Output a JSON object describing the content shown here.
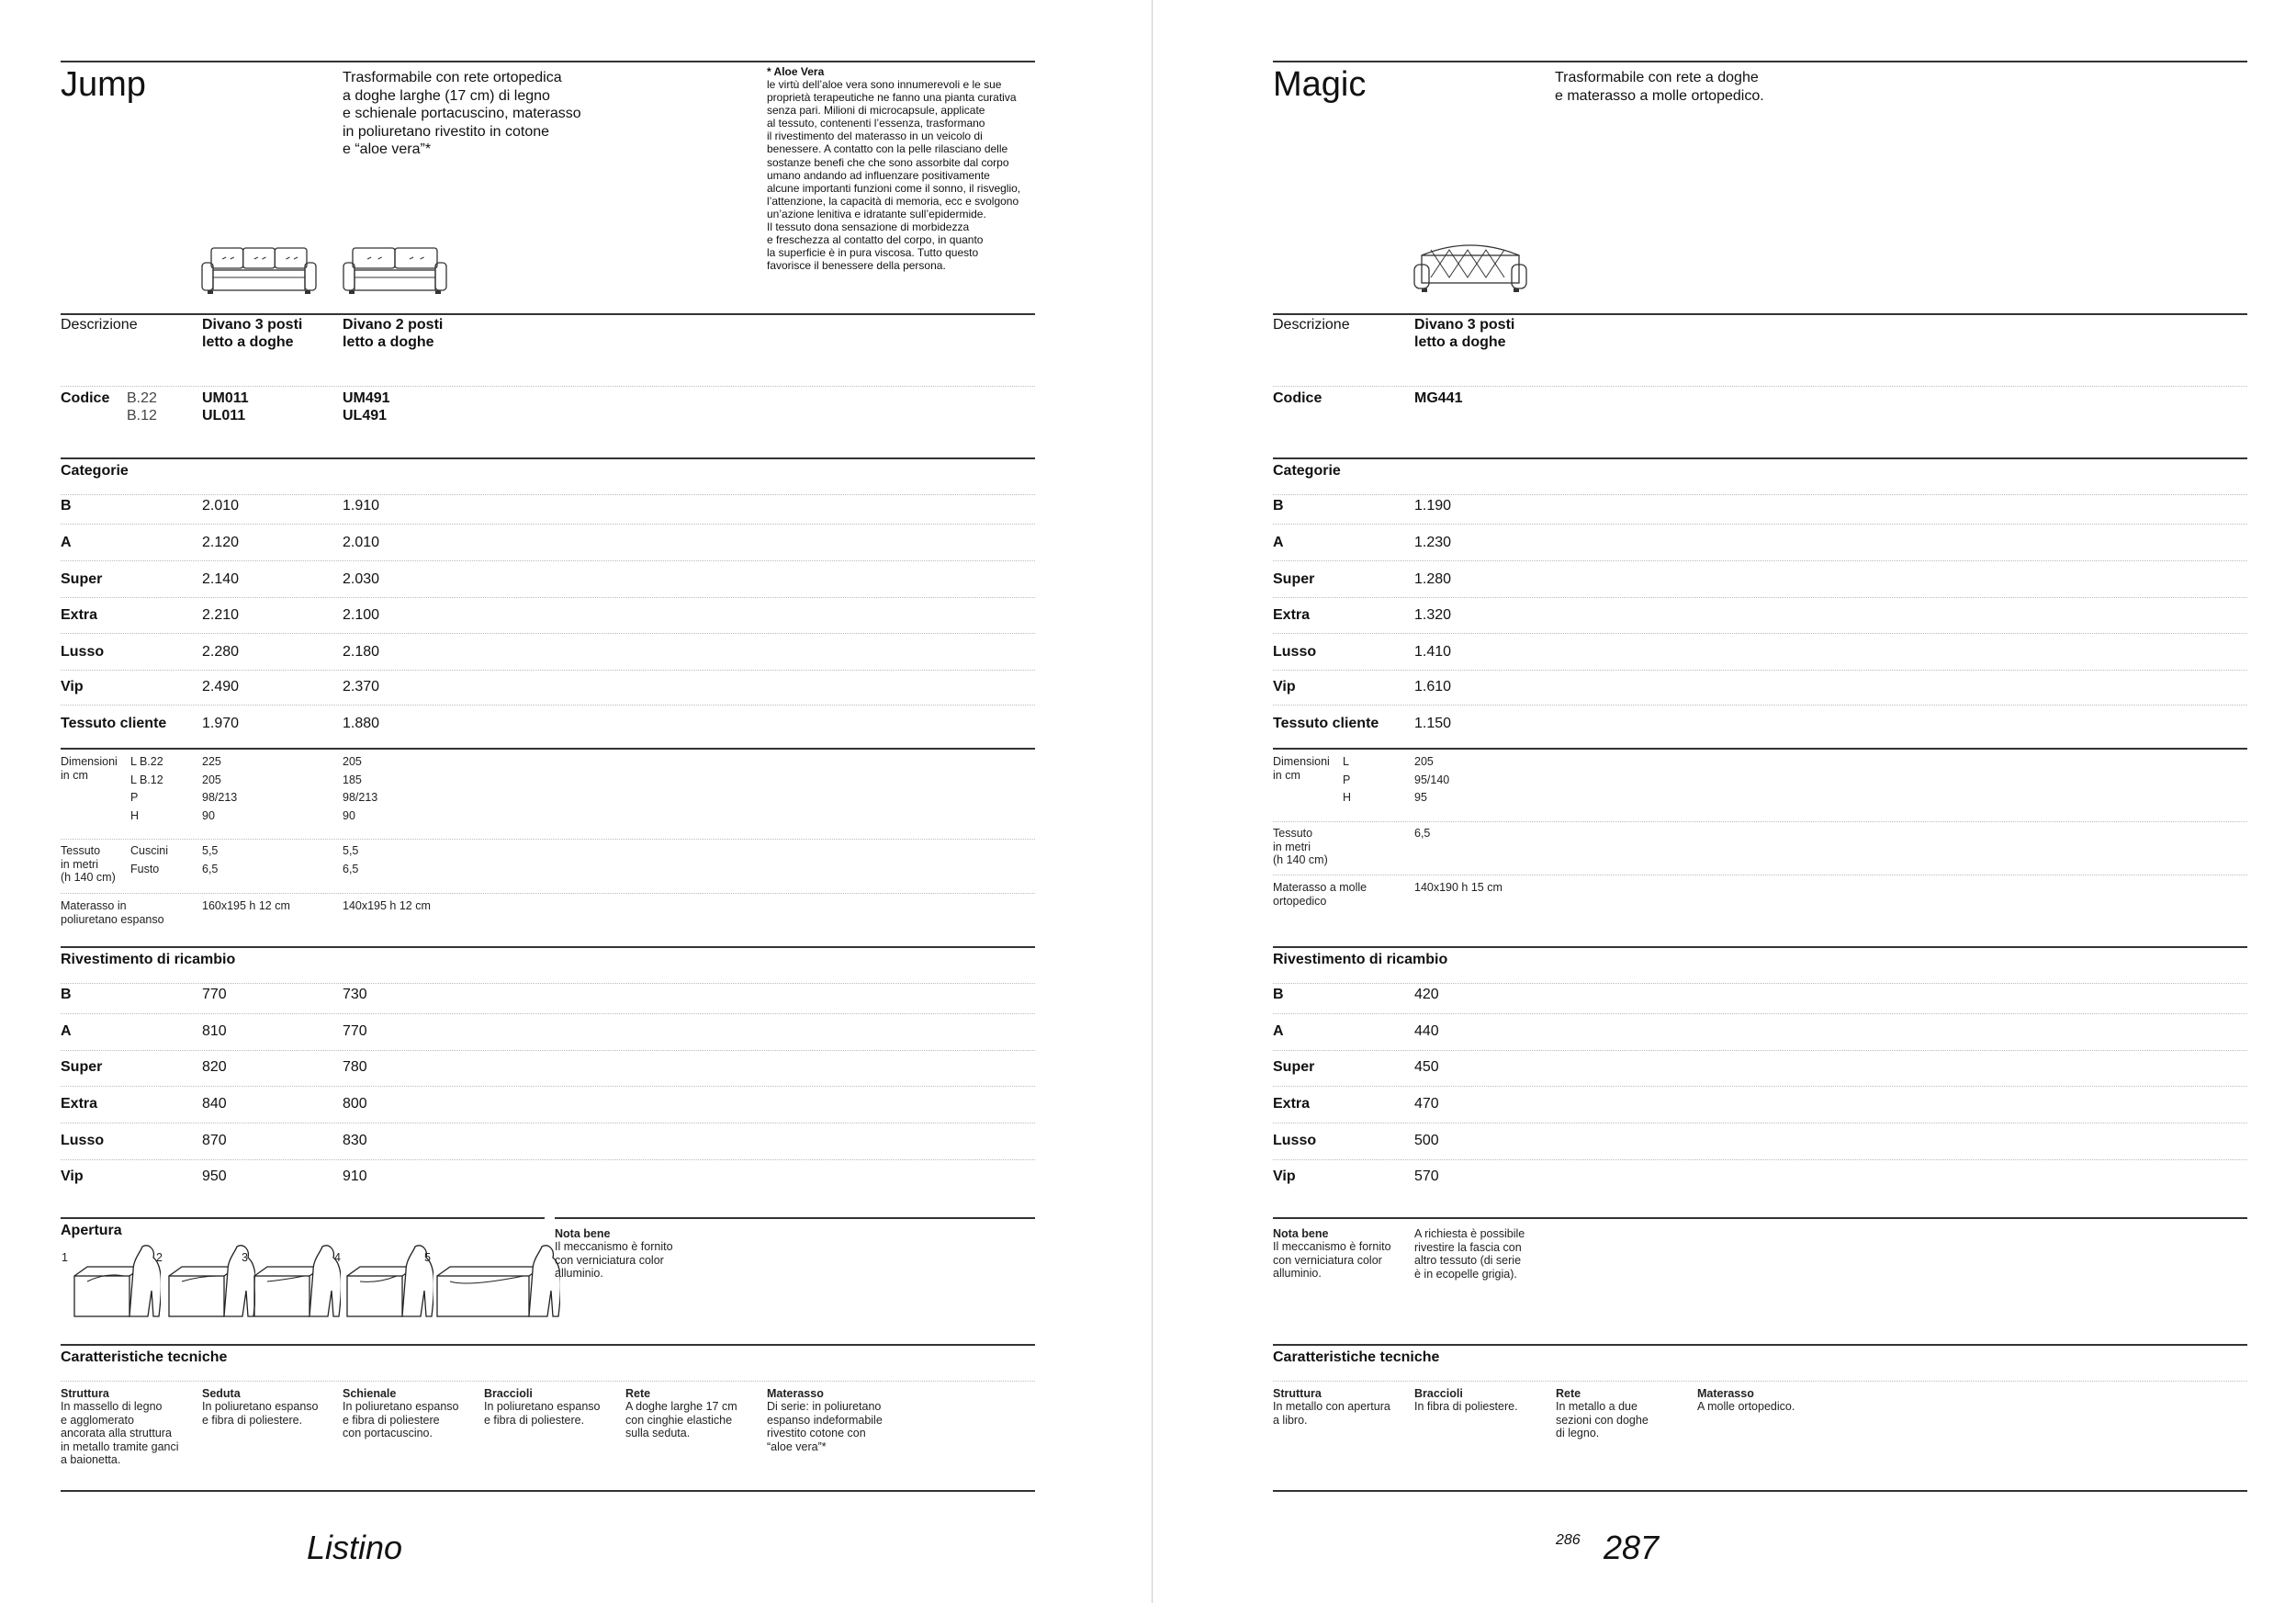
{
  "jump": {
    "title": "Jump",
    "description": "Trasformabile con rete ortopedica\na doghe larghe (17 cm) di legno\ne schienale portacuscino, materasso\nin poliuretano rivestito in cotone\ne “aloe vera”*",
    "aloe_title": "* Aloe Vera",
    "aloe_text": "le virtù dell’aloe vera sono innumerevoli e le sue\nproprietà terapeutiche ne fanno una pianta curativa\nsenza pari. Milioni di microcapsule, applicate\nal tessuto, contenenti l’essenza, trasformano\nil rivestimento del materasso in un veicolo di\nbenessere. A contatto con la pelle rilasciano delle\nsostanze benefi che che sono assorbite dal corpo\numano andando ad influenzare positivamente\nalcune importanti funzioni come il sonno, il risveglio,\nl’attenzione, la capacità di memoria, ecc e svolgono\nun’azione lenitiva e idratante sull’epidermide.\nIl tessuto dona sensazione di morbidezza\ne freschezza al contatto del corpo, in quanto\nla superficie è in pura viscosa. Tutto questo\nfavorisce il benessere della persona.",
    "descrizione_label": "Descrizione",
    "products": [
      "Divano 3 posti\nletto a doghe",
      "Divano 2 posti\nletto a doghe"
    ],
    "codice_label": "Codice",
    "codice_variants": "B.22\nB.12",
    "codes": [
      "UM011\nUL011",
      "UM491\nUL491"
    ],
    "categorie_label": "Categorie",
    "categories": [
      {
        "label": "B",
        "values": [
          "2.010",
          "1.910"
        ]
      },
      {
        "label": "A",
        "values": [
          "2.120",
          "2.010"
        ]
      },
      {
        "label": "Super",
        "values": [
          "2.140",
          "2.030"
        ]
      },
      {
        "label": "Extra",
        "values": [
          "2.210",
          "2.100"
        ]
      },
      {
        "label": "Lusso",
        "values": [
          "2.280",
          "2.180"
        ]
      },
      {
        "label": "Vip",
        "values": [
          "2.490",
          "2.370"
        ]
      },
      {
        "label": "Tessuto cliente",
        "values": [
          "1.970",
          "1.880"
        ]
      }
    ],
    "dimensioni_label": "Dimensioni\nin cm",
    "dimensioni": [
      {
        "label": "L  B.22",
        "values": [
          "225",
          "205"
        ]
      },
      {
        "label": "L  B.12",
        "values": [
          "205",
          "185"
        ]
      },
      {
        "label": "P",
        "values": [
          "98/213",
          "98/213"
        ]
      },
      {
        "label": "H",
        "values": [
          "90",
          "90"
        ]
      }
    ],
    "tessuto_label": "Tessuto\nin metri\n(h 140 cm)",
    "tessuto": [
      {
        "label": "Cuscini",
        "values": [
          "5,5",
          "5,5"
        ]
      },
      {
        "label": "Fusto",
        "values": [
          "6,5",
          "6,5"
        ]
      }
    ],
    "materasso_label": "Materasso in\npoliuretano espanso",
    "materasso_values": [
      "160x195  h 12 cm",
      "140x195  h 12 cm"
    ],
    "rivestimento_label": "Rivestimento di ricambio",
    "rivestimento": [
      {
        "label": "B",
        "values": [
          "770",
          "730"
        ]
      },
      {
        "label": "A",
        "values": [
          "810",
          "770"
        ]
      },
      {
        "label": "Super",
        "values": [
          "820",
          "780"
        ]
      },
      {
        "label": "Extra",
        "values": [
          "840",
          "800"
        ]
      },
      {
        "label": "Lusso",
        "values": [
          "870",
          "830"
        ]
      },
      {
        "label": "Vip",
        "values": [
          "950",
          "910"
        ]
      }
    ],
    "apertura_label": "Apertura",
    "apertura_steps": [
      "1",
      "2",
      "3",
      "4",
      "5"
    ],
    "nota_title": "Nota bene",
    "nota_text": "Il meccanismo è fornito\ncon verniciatura color\nalluminio.",
    "tech_label": "Caratteristiche tecniche",
    "tech": [
      {
        "title": "Struttura",
        "text": "In massello di legno\ne agglomerato\nancorata alla struttura\nin metallo tramite ganci\na baionetta."
      },
      {
        "title": "Seduta",
        "text": "In poliuretano espanso\ne fibra di poliestere."
      },
      {
        "title": "Schienale",
        "text": "In poliuretano espanso\ne fibra di poliestere\ncon portacuscino."
      },
      {
        "title": "Braccioli",
        "text": "In poliuretano espanso\ne fibra di poliestere."
      },
      {
        "title": "Rete",
        "text": "A doghe larghe 17 cm\ncon cinghie elastiche\nsulla seduta."
      },
      {
        "title": "Materasso",
        "text": "Di serie: in poliuretano\nespanso indeformabile\nrivestito cotone con\n“aloe vera”*"
      }
    ]
  },
  "magic": {
    "title": "Magic",
    "description": "Trasformabile con rete a doghe\ne materasso a molle ortopedico.",
    "descrizione_label": "Descrizione",
    "products": [
      "Divano 3 posti\nletto a doghe"
    ],
    "codice_label": "Codice",
    "codes": [
      "MG441"
    ],
    "categorie_label": "Categorie",
    "categories": [
      {
        "label": "B",
        "values": [
          "1.190"
        ]
      },
      {
        "label": "A",
        "values": [
          "1.230"
        ]
      },
      {
        "label": "Super",
        "values": [
          "1.280"
        ]
      },
      {
        "label": "Extra",
        "values": [
          "1.320"
        ]
      },
      {
        "label": "Lusso",
        "values": [
          "1.410"
        ]
      },
      {
        "label": "Vip",
        "values": [
          "1.610"
        ]
      },
      {
        "label": "Tessuto cliente",
        "values": [
          "1.150"
        ]
      }
    ],
    "dimensioni_label": "Dimensioni\nin cm",
    "dimensioni": [
      {
        "label": "L",
        "values": [
          "205"
        ]
      },
      {
        "label": "P",
        "values": [
          "95/140"
        ]
      },
      {
        "label": "H",
        "values": [
          "95"
        ]
      }
    ],
    "tessuto_label": "Tessuto\nin metri\n(h 140 cm)",
    "tessuto_value": "6,5",
    "materasso_label": "Materasso a molle\nortopedico",
    "materasso_value": "140x190  h 15 cm",
    "rivestimento_label": "Rivestimento di ricambio",
    "rivestimento": [
      {
        "label": "B",
        "values": [
          "420"
        ]
      },
      {
        "label": "A",
        "values": [
          "440"
        ]
      },
      {
        "label": "Super",
        "values": [
          "450"
        ]
      },
      {
        "label": "Extra",
        "values": [
          "470"
        ]
      },
      {
        "label": "Lusso",
        "values": [
          "500"
        ]
      },
      {
        "label": "Vip",
        "values": [
          "570"
        ]
      }
    ],
    "nota_title": "Nota bene",
    "nota_text": "Il meccanismo è fornito\ncon verniciatura color\nalluminio.",
    "nota_extra": "A richiesta è possibile\nrivestire la fascia con\naltro tessuto (di serie\nè in ecopelle grigia).",
    "tech_label": "Caratteristiche tecniche",
    "tech": [
      {
        "title": "Struttura",
        "text": "In metallo con apertura\na libro."
      },
      {
        "title": "Braccioli",
        "text": "In fibra di poliestere."
      },
      {
        "title": "Rete",
        "text": "In metallo a due\nsezioni con doghe\ndi legno."
      },
      {
        "title": "Materasso",
        "text": "A molle ortopedico."
      }
    ]
  },
  "footer": {
    "listino": "Listino",
    "page_left": "286",
    "page_right": "287"
  }
}
